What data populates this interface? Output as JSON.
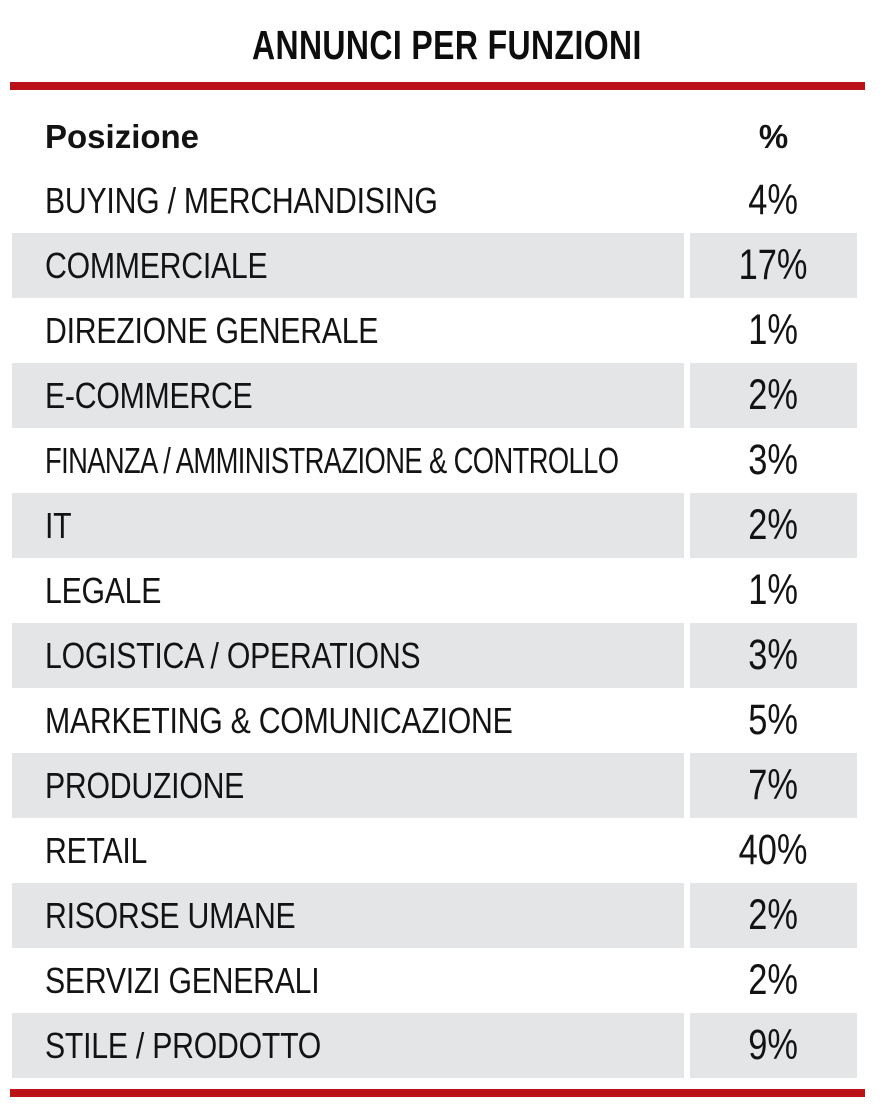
{
  "title": "ANNUNCI PER FUNZIONI",
  "header": {
    "position_label": "Posizione",
    "percent_label": "%"
  },
  "rows": [
    {
      "label": "BUYING / MERCHANDISING",
      "percent": "4%"
    },
    {
      "label": "COMMERCIALE",
      "percent": "17%"
    },
    {
      "label": "DIREZIONE GENERALE",
      "percent": "1%"
    },
    {
      "label": "E-COMMERCE",
      "percent": "2%"
    },
    {
      "label": "FINANZA / AMMINISTRAZIONE & CONTROLLO",
      "percent": "3%"
    },
    {
      "label": "IT",
      "percent": "2%"
    },
    {
      "label": "LEGALE",
      "percent": "1%"
    },
    {
      "label": "LOGISTICA / OPERATIONS",
      "percent": "3%"
    },
    {
      "label": "MARKETING & COMUNICAZIONE",
      "percent": "5%"
    },
    {
      "label": "PRODUZIONE",
      "percent": "7%"
    },
    {
      "label": "RETAIL",
      "percent": "40%"
    },
    {
      "label": "RISORSE UMANE",
      "percent": "2%"
    },
    {
      "label": "SERVIZI GENERALI",
      "percent": "2%"
    },
    {
      "label": "STILE / PRODOTTO",
      "percent": "9%"
    }
  ],
  "colors": {
    "accent_red": "#bb1217",
    "row_shade_gray": "#e4e5e7",
    "text_black": "#131313"
  },
  "chart_data": {
    "type": "table",
    "title": "ANNUNCI PER FUNZIONI",
    "columns": [
      "Posizione",
      "%"
    ],
    "categories": [
      "BUYING / MERCHANDISING",
      "COMMERCIALE",
      "DIREZIONE GENERALE",
      "E-COMMERCE",
      "FINANZA / AMMINISTRAZIONE & CONTROLLO",
      "IT",
      "LEGALE",
      "LOGISTICA / OPERATIONS",
      "MARKETING & COMUNICAZIONE",
      "PRODUZIONE",
      "RETAIL",
      "RISORSE UMANE",
      "SERVIZI GENERALI",
      "STILE / PRODOTTO"
    ],
    "values": [
      4,
      17,
      1,
      2,
      3,
      2,
      1,
      3,
      5,
      7,
      40,
      2,
      2,
      9
    ],
    "unit": "percent",
    "shaded_row_indices": [
      1,
      3,
      5,
      7,
      9,
      11,
      13
    ]
  }
}
